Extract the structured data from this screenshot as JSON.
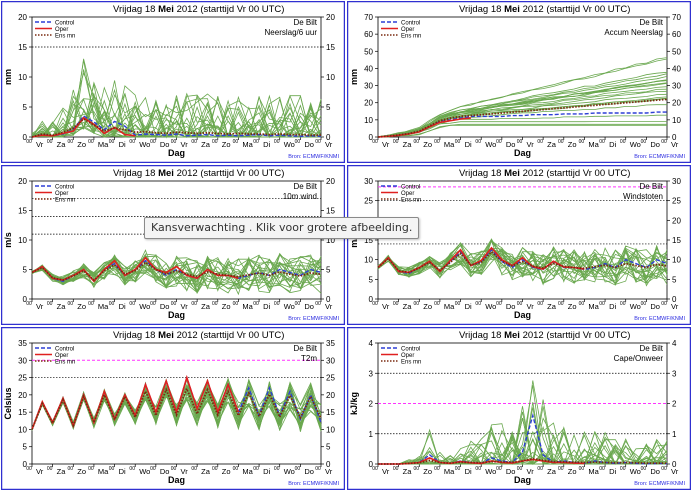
{
  "tooltip": "Kansverwachting . Klik voor grotere afbeelding.",
  "colors": {
    "border": "#3030d0",
    "ens": "#6aa84f",
    "control": "#2d3fd6",
    "oper": "#e02020",
    "ensmean": "#7a2a10",
    "threshold": "#ff33ff",
    "source": "#2a2ae0"
  },
  "common": {
    "title_day": "Vrijdag",
    "title_date": "18",
    "title_month": "Mei",
    "title_year": "2012",
    "title_run": "(starttijd  Vr 00 UTC)",
    "location": "De Bilt",
    "xlabel": "Dag",
    "source": "Bron: ECMWF/KNMI",
    "legend": [
      "Control",
      "Oper",
      "Ens mn"
    ],
    "day_labels": [
      "Vr",
      "Za",
      "Zo",
      "Ma",
      "Di",
      "Wo",
      "Do",
      "Vr",
      "Za",
      "Zo",
      "Ma",
      "Di",
      "Wo",
      "Do",
      "Vr"
    ],
    "hour_label": "00"
  },
  "chart_data": [
    {
      "type": "line",
      "id": "neerslag",
      "param": "Neerslag/6 uur",
      "ylabel": "mm",
      "ylim": [
        0,
        20
      ],
      "yticks": [
        0,
        5,
        10,
        15,
        20
      ],
      "dotted_lines": [
        15
      ],
      "threshold": null,
      "control": [
        0,
        0.4,
        0.2,
        0.5,
        1.2,
        3.5,
        2.5,
        1.2,
        2.6,
        1.8,
        0.3,
        0.5,
        0.4,
        0.3,
        0.5,
        0.2,
        0.3,
        0.4,
        0.2,
        0.3,
        0.2,
        0.3,
        0.4,
        0.2,
        0.3,
        0.2,
        0.1,
        0.2,
        0.1
      ],
      "oper": [
        0,
        0.3,
        0.2,
        0.6,
        1.0,
        3.2,
        2.1,
        0.6,
        1.6,
        0.4,
        0.2
      ],
      "ensmean": [
        0,
        0.5,
        0.3,
        0.8,
        1.5,
        3.0,
        2.0,
        1.0,
        1.5,
        1.2,
        0.8,
        0.9,
        0.7,
        0.6,
        0.8,
        0.7,
        0.6,
        0.7,
        0.6,
        0.5,
        0.6,
        0.5,
        0.5,
        0.4,
        0.5,
        0.4,
        0.4,
        0.3,
        0.3
      ],
      "spread": [
        0.3,
        1.0,
        1.5,
        2.0,
        3.0,
        4.0,
        3.5,
        3.0,
        3.5,
        3.0,
        2.5,
        2.5,
        2.5,
        2.5,
        2.5,
        2.5,
        2.5,
        2.5,
        2.5,
        2.5,
        2.5,
        2.5,
        2.5,
        2.5,
        2.5,
        2.5,
        2.5,
        2.5,
        2.5
      ],
      "kind": "precip"
    },
    {
      "type": "line",
      "id": "accum",
      "param": "Accum Neerslag",
      "ylabel": "mm",
      "ylim": [
        0,
        70
      ],
      "yticks": [
        0,
        10,
        20,
        30,
        40,
        50,
        60,
        70
      ],
      "dotted_lines": [],
      "threshold": null,
      "control": [
        0,
        0.5,
        1,
        2,
        3,
        6,
        9,
        10,
        11,
        12,
        12,
        12,
        12,
        12.5,
        12.5,
        13,
        13,
        13,
        13.5,
        13.5,
        13.5,
        14,
        14,
        14,
        14,
        14,
        14,
        14.5,
        14.5
      ],
      "oper": [
        0,
        0.4,
        1,
        1.8,
        3,
        6,
        8.5,
        9.5,
        10.5,
        11
      ],
      "ensmean": [
        0,
        0.5,
        1.2,
        2,
        3.5,
        6.5,
        9.5,
        11,
        12,
        12.5,
        13,
        13.5,
        14,
        14.5,
        15,
        15.5,
        16,
        16.5,
        17,
        17.5,
        18,
        18.5,
        19,
        19.5,
        20,
        20.5,
        21,
        21.5,
        22
      ],
      "spread": [
        0,
        0.5,
        1,
        1.5,
        2,
        3,
        4,
        5,
        6,
        7,
        8,
        9,
        10,
        11,
        12,
        13,
        14,
        15,
        16,
        17,
        18,
        19,
        20,
        21,
        22,
        23,
        24,
        25,
        26
      ],
      "kind": "accum"
    },
    {
      "type": "line",
      "id": "wind",
      "param": "10m wind",
      "ylabel": "m/s",
      "ylim": [
        0,
        20
      ],
      "yticks": [
        0,
        5,
        10,
        15,
        20
      ],
      "dotted_lines": [
        11,
        14,
        17
      ],
      "threshold": null,
      "control": [
        4.5,
        5.5,
        3.5,
        3,
        4,
        5,
        3,
        5,
        6,
        4,
        5,
        6.5,
        5,
        4,
        5,
        4,
        3.5,
        5,
        4,
        4,
        3.5,
        4,
        4.5,
        4,
        5,
        4.5,
        4,
        5,
        4.5
      ],
      "oper": [
        4.5,
        5.5,
        3.5,
        3.2,
        4,
        5,
        3,
        5,
        6.5,
        4,
        5,
        7,
        5,
        4.5,
        5.5,
        4,
        3.5,
        5,
        4,
        4,
        3.5
      ],
      "ensmean": [
        4.5,
        5.3,
        3.6,
        3.2,
        3.9,
        4.8,
        3.2,
        4.8,
        5.8,
        4.2,
        4.8,
        6.2,
        5,
        4.2,
        4.8,
        4.2,
        3.8,
        4.6,
        4.2,
        4,
        3.8,
        4.1,
        4.4,
        4,
        4.6,
        4.2,
        3.9,
        4.4,
        4.2
      ],
      "spread": [
        0.3,
        0.5,
        0.6,
        0.8,
        1,
        1.2,
        1.3,
        1.5,
        1.8,
        2,
        2.1,
        2.3,
        2.5,
        2.6,
        2.7,
        2.8,
        2.8,
        2.9,
        3,
        3,
        3,
        3.1,
        3.1,
        3.2,
        3.2,
        3.2,
        3.3,
        3.3,
        3.3
      ],
      "kind": "normal"
    },
    {
      "type": "line",
      "id": "windstoten",
      "param": "Windstoten",
      "ylabel": "m/s",
      "ylim": [
        0,
        30
      ],
      "yticks": [
        0,
        5,
        10,
        15,
        20,
        25,
        30
      ],
      "dotted_lines": [
        14,
        25
      ],
      "threshold": 28.5,
      "control": [
        8,
        10.5,
        7,
        6.5,
        8,
        9.5,
        7,
        9.5,
        12,
        8.5,
        9.5,
        12.5,
        9.5,
        8,
        10,
        8,
        7.5,
        9.5,
        8,
        8,
        7.5,
        8,
        9,
        8,
        10,
        9,
        8,
        10,
        9
      ],
      "oper": [
        8,
        10.5,
        7,
        6.8,
        8,
        9.6,
        7,
        9.8,
        12.5,
        8.5,
        9.8,
        13,
        10,
        8.5,
        10.5,
        8.2,
        7.6,
        9.6,
        8.1,
        8,
        7.6
      ],
      "ensmean": [
        8,
        10.3,
        7.2,
        6.8,
        7.9,
        9.3,
        7.3,
        9.3,
        11.6,
        8.6,
        9.3,
        12,
        9.6,
        8.4,
        9.5,
        8.4,
        7.9,
        9,
        8.3,
        8,
        7.8,
        8.2,
        8.6,
        8,
        9,
        8.5,
        8,
        8.8,
        8.4
      ],
      "spread": [
        0.5,
        0.8,
        1,
        1.3,
        1.6,
        1.9,
        2.1,
        2.4,
        2.8,
        3,
        3.2,
        3.5,
        3.7,
        3.9,
        4,
        4.1,
        4.2,
        4.3,
        4.4,
        4.5,
        4.5,
        4.6,
        4.6,
        4.7,
        4.7,
        4.7,
        4.8,
        4.8,
        4.8
      ],
      "kind": "normal"
    },
    {
      "type": "line",
      "id": "t2m",
      "param": "T2m",
      "ylabel": "Celsius",
      "ylim": [
        0,
        35
      ],
      "yticks": [
        0,
        5,
        10,
        15,
        20,
        25,
        30,
        35
      ],
      "dotted_lines": [
        25
      ],
      "threshold": 30,
      "control": [
        10,
        18,
        12,
        19,
        11,
        20,
        12,
        21,
        13,
        20,
        14,
        23,
        15,
        24,
        15,
        25,
        16,
        24,
        15,
        23,
        15,
        22,
        14,
        22,
        14,
        21,
        13,
        20,
        12
      ],
      "oper": [
        10,
        18,
        12,
        19,
        11,
        20,
        12,
        21,
        13,
        20,
        14,
        23,
        15,
        24,
        15,
        25,
        16,
        24,
        15,
        23,
        15
      ],
      "ensmean": [
        10,
        17.5,
        11.8,
        18.5,
        11.2,
        19.5,
        12,
        20,
        12.8,
        19.5,
        13.5,
        21,
        14,
        21.5,
        14.2,
        21.8,
        14.5,
        21.5,
        14.2,
        21,
        14,
        20.5,
        13.8,
        20.2,
        13.6,
        19.8,
        13.4,
        19.5,
        13.2
      ],
      "spread": [
        0.3,
        0.5,
        0.7,
        0.9,
        1.1,
        1.3,
        1.5,
        1.7,
        1.9,
        2.1,
        2.3,
        2.5,
        2.7,
        2.9,
        3.1,
        3.3,
        3.5,
        3.6,
        3.7,
        3.8,
        3.9,
        4,
        4.1,
        4.2,
        4.3,
        4.3,
        4.4,
        4.4,
        4.5
      ],
      "kind": "diurnal"
    },
    {
      "type": "line",
      "id": "cape",
      "param": "Cape/Onweer",
      "ylabel": "kJ/kg",
      "ylim": [
        0,
        4
      ],
      "yticks": [
        0,
        1,
        2,
        3,
        4
      ],
      "dotted_lines": [
        1,
        3
      ],
      "threshold": 2,
      "control": [
        0,
        0,
        0,
        0.02,
        0.05,
        0.3,
        0.05,
        0.02,
        0.1,
        0.05,
        0.02,
        0.2,
        0.1,
        0.05,
        0.4,
        1.6,
        0.3,
        0.05,
        0.1,
        0.05,
        0.02,
        0.1,
        0.05,
        0.02,
        0.05,
        0.02,
        0.01,
        0.02,
        0.01
      ],
      "oper": [
        0,
        0,
        0,
        0.02,
        0.05,
        0.2,
        0.05,
        0.02,
        0.08,
        0.04,
        0.02,
        0.1,
        0.05,
        0.03,
        0.1,
        0.15,
        0.1,
        0.05,
        0.05,
        0.03,
        0.02
      ],
      "ensmean": [
        0,
        0,
        0,
        0.02,
        0.04,
        0.12,
        0.05,
        0.03,
        0.06,
        0.05,
        0.04,
        0.08,
        0.07,
        0.06,
        0.1,
        0.18,
        0.12,
        0.08,
        0.07,
        0.06,
        0.05,
        0.06,
        0.05,
        0.04,
        0.05,
        0.04,
        0.03,
        0.03,
        0.03
      ],
      "spread": [
        0,
        0,
        0,
        0.05,
        0.1,
        0.4,
        0.2,
        0.1,
        0.3,
        0.3,
        0.3,
        0.5,
        0.5,
        0.5,
        0.7,
        1,
        0.8,
        0.6,
        0.5,
        0.5,
        0.5,
        0.4,
        0.4,
        0.4,
        0.4,
        0.3,
        0.3,
        0.3,
        0.3
      ],
      "kind": "cape"
    }
  ]
}
